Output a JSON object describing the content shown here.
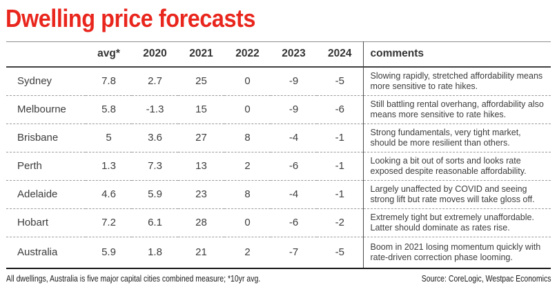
{
  "colors": {
    "title_red": "#e9261d",
    "text_gray": "#3c3c3c",
    "header_gray": "#333333",
    "rule_dark": "#3f3f3f",
    "rule_dashed": "#9a9a9a",
    "bottom_rule": "#141414"
  },
  "chart_data": {
    "type": "table",
    "title": "Dwelling price forecasts",
    "columns": [
      "avg*",
      "2020",
      "2021",
      "2022",
      "2023",
      "2024"
    ],
    "comments_header": "comments",
    "rows": [
      {
        "name": "Sydney",
        "values": [
          7.8,
          2.7,
          25,
          0,
          -9,
          -5
        ],
        "comment": "Slowing rapidly, stretched affordability means more sensitive to rate hikes."
      },
      {
        "name": "Melbourne",
        "values": [
          5.8,
          -1.3,
          15,
          0,
          -9,
          -6
        ],
        "comment": "Still battling rental overhang, affordability also means more sensitive to rate hikes."
      },
      {
        "name": "Brisbane",
        "values": [
          5,
          3.6,
          27,
          8,
          -4,
          -1
        ],
        "comment": "Strong fundamentals, very tight market, should be more resilient than others."
      },
      {
        "name": "Perth",
        "values": [
          1.3,
          7.3,
          13,
          2,
          -6,
          -1
        ],
        "comment": "Looking a bit out of sorts and looks rate exposed despite reasonable affordability."
      },
      {
        "name": "Adelaide",
        "values": [
          4.6,
          5.9,
          23,
          8,
          -4,
          -1
        ],
        "comment": "Largely unaffected by COVID and seeing strong lift but rate moves will take gloss off."
      },
      {
        "name": "Hobart",
        "values": [
          7.2,
          6.1,
          28,
          0,
          -6,
          -2
        ],
        "comment": "Extremely tight but extremely unaffordable. Latter should dominate as rates rise."
      },
      {
        "name": "Australia",
        "values": [
          5.9,
          1.8,
          21,
          2,
          -7,
          -5
        ],
        "comment": "Boom in 2021 losing momentum quickly with rate-driven correction phase looming."
      }
    ],
    "footnote": "All dwellings, Australia is five major capital cities combined measure; *10yr avg.",
    "source": "Source: CoreLogic, Westpac Economics",
    "layout": {
      "grid": false,
      "legend": "none",
      "units": "% annual dwelling price change"
    }
  }
}
